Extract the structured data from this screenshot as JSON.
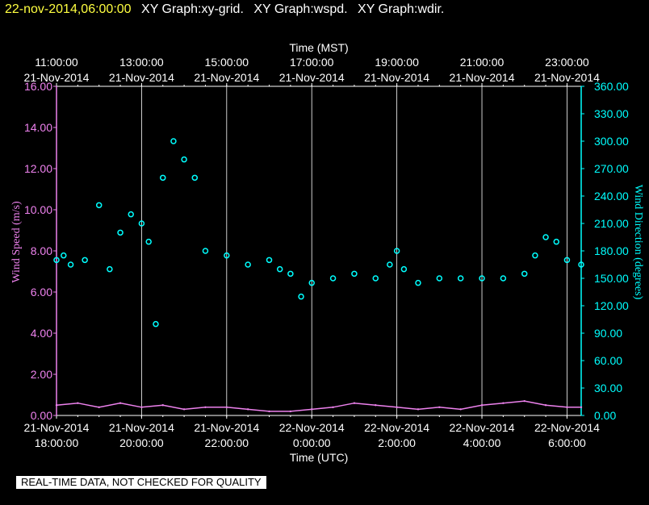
{
  "header": {
    "timestamp": "22-nov-2014,06:00:00",
    "graph_titles": [
      "XY Graph:xy-grid.",
      "XY Graph:wspd.",
      "XY Graph:wdir."
    ]
  },
  "disclaimer": "REAL-TIME DATA, NOT CHECKED FOR QUALITY",
  "colors": {
    "speed": "#ee82ee",
    "direction": "#00ffff",
    "grid": "#ffffff",
    "text": "#ffffff",
    "background": "#000000"
  },
  "chart_data": {
    "type": "scatter",
    "title": "",
    "top_axis": {
      "label": "Time (MST)",
      "ticks": [
        {
          "time": "11:00:00",
          "date": "21-Nov-2014"
        },
        {
          "time": "13:00:00",
          "date": "21-Nov-2014"
        },
        {
          "time": "15:00:00",
          "date": "21-Nov-2014"
        },
        {
          "time": "17:00:00",
          "date": "21-Nov-2014"
        },
        {
          "time": "19:00:00",
          "date": "21-Nov-2014"
        },
        {
          "time": "21:00:00",
          "date": "21-Nov-2014"
        },
        {
          "time": "23:00:00",
          "date": "21-Nov-2014"
        }
      ]
    },
    "bottom_axis": {
      "label": "Time (UTC)",
      "ticks": [
        {
          "date": "21-Nov-2014",
          "time": "18:00:00"
        },
        {
          "date": "21-Nov-2014",
          "time": "20:00:00"
        },
        {
          "date": "21-Nov-2014",
          "time": "22:00:00"
        },
        {
          "date": "22-Nov-2014",
          "time": "0:00:00"
        },
        {
          "date": "22-Nov-2014",
          "time": "2:00:00"
        },
        {
          "date": "22-Nov-2014",
          "time": "4:00:00"
        },
        {
          "date": "22-Nov-2014",
          "time": "6:00:00"
        }
      ]
    },
    "x_range_utc": [
      "2014-11-21 18:00",
      "2014-11-22 06:20"
    ],
    "left_axis": {
      "label": "Wind Speed (m/s)",
      "range": [
        0,
        16
      ],
      "ticks": [
        "0.00",
        "2.00",
        "4.00",
        "6.00",
        "8.00",
        "10.00",
        "12.00",
        "14.00",
        "16.00"
      ]
    },
    "right_axis": {
      "label": "Wind Direction (degrees)",
      "range": [
        0,
        360
      ],
      "ticks": [
        "0.00",
        "30.00",
        "60.00",
        "90.00",
        "120.00",
        "150.00",
        "180.00",
        "210.00",
        "240.00",
        "270.00",
        "300.00",
        "330.00",
        "360.00"
      ]
    },
    "grid": true,
    "series": [
      {
        "axis": "left",
        "style": "line",
        "x_utc": [
          "18:00",
          "18:30",
          "19:00",
          "19:30",
          "20:00",
          "20:30",
          "21:00",
          "21:30",
          "22:00",
          "22:30",
          "23:00",
          "23:30",
          "00:00",
          "00:30",
          "01:00",
          "01:30",
          "02:00",
          "02:30",
          "03:00",
          "03:30",
          "04:00",
          "04:30",
          "05:00",
          "05:30",
          "06:00",
          "06:20"
        ],
        "values": [
          0.5,
          0.6,
          0.4,
          0.6,
          0.4,
          0.5,
          0.3,
          0.4,
          0.4,
          0.3,
          0.2,
          0.2,
          0.3,
          0.4,
          0.6,
          0.5,
          0.4,
          0.3,
          0.4,
          0.3,
          0.5,
          0.6,
          0.7,
          0.5,
          0.4,
          0.4
        ]
      },
      {
        "axis": "right",
        "style": "circles",
        "x_utc": [
          "18:00",
          "18:10",
          "18:20",
          "18:40",
          "19:00",
          "19:15",
          "19:30",
          "19:45",
          "20:00",
          "20:10",
          "20:20",
          "20:30",
          "20:45",
          "21:00",
          "21:15",
          "21:30",
          "22:00",
          "22:30",
          "23:00",
          "23:15",
          "23:30",
          "23:45",
          "00:00",
          "00:30",
          "01:00",
          "01:30",
          "01:50",
          "02:00",
          "02:10",
          "02:30",
          "03:00",
          "03:30",
          "04:00",
          "04:30",
          "05:00",
          "05:15",
          "05:30",
          "05:45",
          "06:00",
          "06:20"
        ],
        "values": [
          170,
          175,
          165,
          170,
          230,
          160,
          200,
          220,
          210,
          190,
          100,
          260,
          300,
          280,
          260,
          180,
          175,
          165,
          170,
          160,
          155,
          130,
          145,
          150,
          155,
          150,
          165,
          180,
          160,
          145,
          150,
          150,
          150,
          150,
          155,
          175,
          195,
          190,
          170,
          165
        ]
      }
    ]
  }
}
